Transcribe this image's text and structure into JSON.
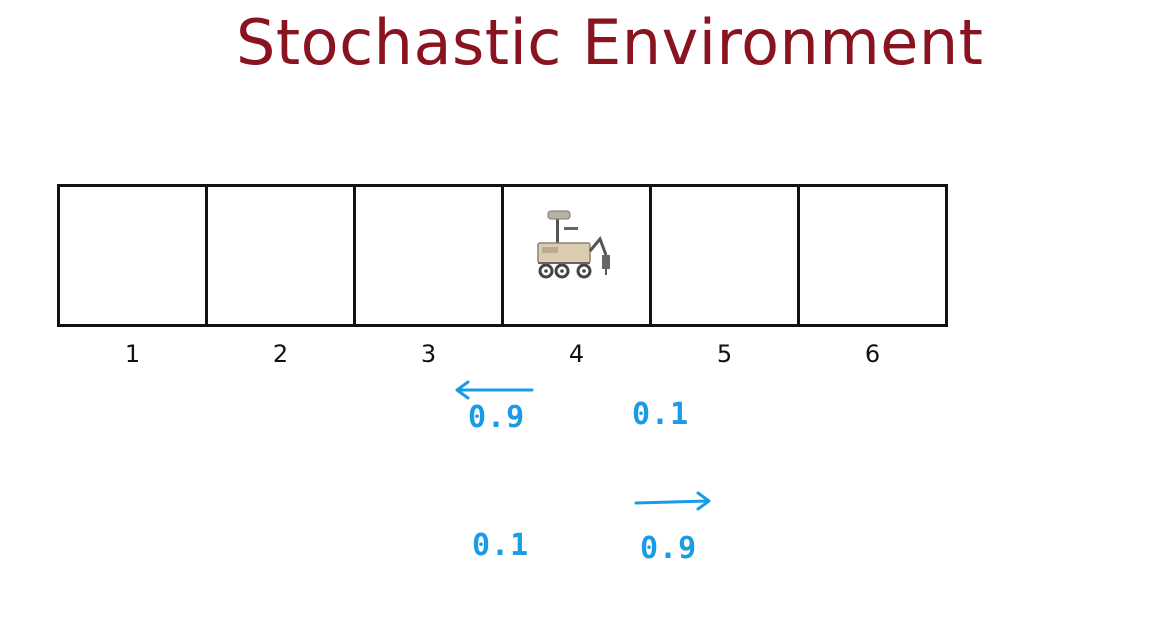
{
  "title": "Stochastic Environment",
  "states": [
    "1",
    "2",
    "3",
    "4",
    "5",
    "6"
  ],
  "current_state": "4",
  "left_action": {
    "arrow_icon": "left-arrow-icon",
    "intended_probability": "0.9",
    "slip_probability": "0.1"
  },
  "right_action": {
    "arrow_icon": "right-arrow-icon",
    "slip_probability": "0.1",
    "intended_probability": "0.9"
  },
  "colors": {
    "title": "#8a1320",
    "annotation": "#1a9be6",
    "grid": "#111111"
  }
}
